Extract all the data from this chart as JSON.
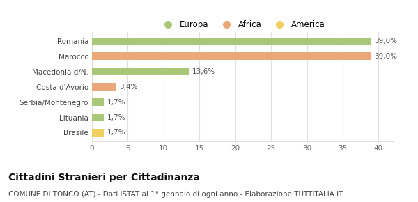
{
  "categories": [
    "Brasile",
    "Lituania",
    "Serbia/Montenegro",
    "Costa d'Avorio",
    "Macedonia d/N.",
    "Marocco",
    "Romania"
  ],
  "values": [
    1.7,
    1.7,
    1.7,
    3.4,
    13.6,
    39.0,
    39.0
  ],
  "colors": [
    "#f0d060",
    "#a8c878",
    "#a8c878",
    "#e8a878",
    "#a8c878",
    "#e8a878",
    "#a8c878"
  ],
  "labels": [
    "1,7%",
    "1,7%",
    "1,7%",
    "3,4%",
    "13,6%",
    "39,0%",
    "39,0%"
  ],
  "legend_entries": [
    {
      "label": "Europa",
      "color": "#a8c878"
    },
    {
      "label": "Africa",
      "color": "#e8a878"
    },
    {
      "label": "America",
      "color": "#f0d060"
    }
  ],
  "xlim": [
    0,
    42
  ],
  "xticks": [
    0,
    5,
    10,
    15,
    20,
    25,
    30,
    35,
    40
  ],
  "title": "Cittadini Stranieri per Cittadinanza",
  "subtitle": "COMUNE DI TONCO (AT) - Dati ISTAT al 1° gennaio di ogni anno - Elaborazione TUTTITALIA.IT",
  "background_color": "#ffffff",
  "plot_bg_color": "#ffffff",
  "grid_color": "#e0e0e0",
  "title_fontsize": 10,
  "subtitle_fontsize": 7.5,
  "label_fontsize": 7.5,
  "tick_fontsize": 7.5,
  "legend_fontsize": 8.5,
  "bar_height": 0.5
}
